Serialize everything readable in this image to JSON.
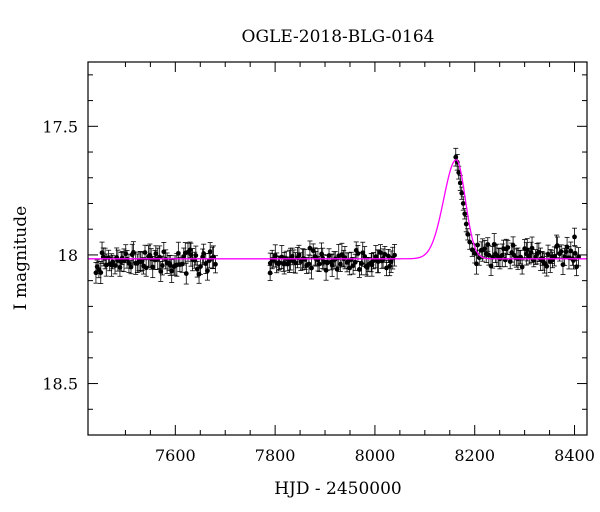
{
  "chart_data": {
    "type": "scatter",
    "title": "OGLE-2018-BLG-0164",
    "xlabel": "HJD - 2450000",
    "ylabel": "I magnitude",
    "xlim": [
      7425,
      8425
    ],
    "ylim": [
      18.7,
      17.25
    ],
    "y_inverted": true,
    "grid": false,
    "x_ticks": [
      7600,
      7800,
      8000,
      8200,
      8400
    ],
    "x_tick_labels": [
      "7600",
      "7800",
      "8000",
      "8200",
      "8400"
    ],
    "y_ticks": [
      17.5,
      18,
      18.5
    ],
    "y_tick_labels": [
      "17.5",
      "18",
      "18.5"
    ],
    "colors": {
      "points": "#000000",
      "model": "#ff00ff",
      "axes": "#000000"
    },
    "observation_segments": [
      {
        "x_start": 7440,
        "x_end": 7680,
        "mag_mean": 18.03,
        "mag_scatter": 0.035
      },
      {
        "x_start": 7790,
        "x_end": 8040,
        "mag_mean": 18.02,
        "mag_scatter": 0.03
      },
      {
        "x_start": 8200,
        "x_end": 8410,
        "mag_mean": 18.0,
        "mag_scatter": 0.03
      }
    ],
    "highlighted_points": [
      {
        "x": 8162,
        "y": 17.62
      },
      {
        "x": 8165,
        "y": 17.64
      },
      {
        "x": 8168,
        "y": 17.68
      },
      {
        "x": 8171,
        "y": 17.72
      },
      {
        "x": 8174,
        "y": 17.76
      },
      {
        "x": 8177,
        "y": 17.8
      },
      {
        "x": 8180,
        "y": 17.84
      },
      {
        "x": 8183,
        "y": 17.88
      },
      {
        "x": 8186,
        "y": 17.92
      },
      {
        "x": 8190,
        "y": 17.95
      },
      {
        "x": 8195,
        "y": 17.98
      },
      {
        "x": 8400,
        "y": 17.93
      },
      {
        "x": 7790,
        "y": 18.07
      }
    ],
    "model": {
      "name": "",
      "baseline_mag": 18.015,
      "peak_mag": 17.63,
      "t0": 8163,
      "rise_width": 25,
      "decay_width": 18
    }
  }
}
